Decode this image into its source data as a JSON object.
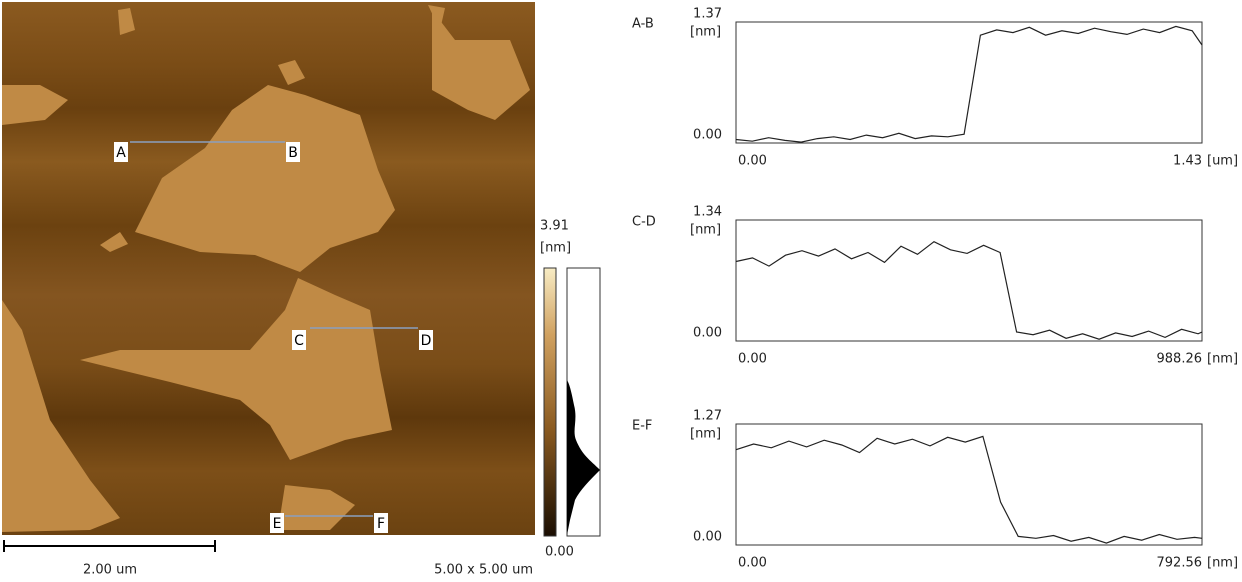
{
  "afm_image": {
    "markers": [
      "A",
      "B",
      "C",
      "D",
      "E",
      "F"
    ],
    "scale_bar_label": "2.00 um",
    "size_label": "5.00 x 5.00 um",
    "colorbar": {
      "max_label": "3.91",
      "unit": "[nm]",
      "min_label": "0.00"
    }
  },
  "chart_data": [
    {
      "type": "line",
      "title": "A-B",
      "y_unit": "[nm]",
      "x_unit": "[um]",
      "xlim": [
        0,
        1.43
      ],
      "ylim": [
        0,
        1.37
      ],
      "xticks": [
        {
          "value": 0,
          "label": "0.00"
        },
        1.43
      ],
      "yticks": [
        {
          "value": 0,
          "label": "0.00"
        },
        1.37
      ],
      "x": [
        0,
        0.05,
        0.1,
        0.15,
        0.2,
        0.25,
        0.3,
        0.35,
        0.4,
        0.45,
        0.5,
        0.55,
        0.6,
        0.65,
        0.7,
        0.75,
        0.8,
        0.85,
        0.9,
        0.95,
        1.0,
        1.05,
        1.1,
        1.15,
        1.2,
        1.25,
        1.3,
        1.35,
        1.4,
        1.43
      ],
      "series": [
        {
          "color": "#222222",
          "values": [
            0.04,
            0.02,
            0.06,
            0.03,
            0.01,
            0.05,
            0.07,
            0.04,
            0.09,
            0.06,
            0.11,
            0.05,
            0.08,
            0.07,
            0.1,
            1.22,
            1.28,
            1.25,
            1.31,
            1.22,
            1.27,
            1.24,
            1.3,
            1.26,
            1.23,
            1.29,
            1.25,
            1.32,
            1.27,
            1.11
          ]
        }
      ]
    },
    {
      "type": "line",
      "title": "C-D",
      "y_unit": "[nm]",
      "x_unit": "[nm]",
      "xlim": [
        0,
        988.26
      ],
      "ylim": [
        0,
        1.34
      ],
      "xticks": [
        {
          "value": 0,
          "label": "0.00"
        },
        988.26
      ],
      "yticks": [
        {
          "value": 0,
          "label": "0.00"
        },
        1.34
      ],
      "x": [
        0,
        35,
        70,
        105,
        140,
        175,
        210,
        245,
        280,
        315,
        350,
        385,
        420,
        455,
        490,
        525,
        560,
        595,
        630,
        665,
        700,
        735,
        770,
        805,
        840,
        875,
        910,
        945,
        980,
        988.26
      ],
      "series": [
        {
          "color": "#222222",
          "values": [
            0.88,
            0.92,
            0.83,
            0.95,
            1.0,
            0.94,
            1.02,
            0.91,
            0.98,
            0.87,
            1.05,
            0.96,
            1.1,
            1.01,
            0.97,
            1.06,
            0.98,
            0.1,
            0.07,
            0.12,
            0.03,
            0.08,
            0.02,
            0.09,
            0.05,
            0.11,
            0.04,
            0.13,
            0.08,
            0.1
          ]
        }
      ]
    },
    {
      "type": "line",
      "title": "E-F",
      "y_unit": "[nm]",
      "x_unit": "[nm]",
      "xlim": [
        0,
        792.56
      ],
      "ylim": [
        0,
        1.27
      ],
      "xticks": [
        {
          "value": 0,
          "label": "0.00"
        },
        792.56
      ],
      "yticks": [
        {
          "value": 0,
          "label": "0.00"
        },
        1.27
      ],
      "x": [
        0,
        30,
        60,
        90,
        120,
        150,
        180,
        210,
        240,
        270,
        300,
        330,
        360,
        390,
        420,
        450,
        480,
        510,
        540,
        570,
        600,
        630,
        660,
        690,
        720,
        750,
        780,
        792.56
      ],
      "series": [
        {
          "color": "#222222",
          "values": [
            1.0,
            1.06,
            1.02,
            1.09,
            1.03,
            1.1,
            1.05,
            0.97,
            1.12,
            1.06,
            1.11,
            1.04,
            1.13,
            1.08,
            1.14,
            0.45,
            0.09,
            0.07,
            0.1,
            0.04,
            0.08,
            0.02,
            0.09,
            0.05,
            0.11,
            0.06,
            0.08,
            0.07
          ]
        }
      ]
    }
  ]
}
